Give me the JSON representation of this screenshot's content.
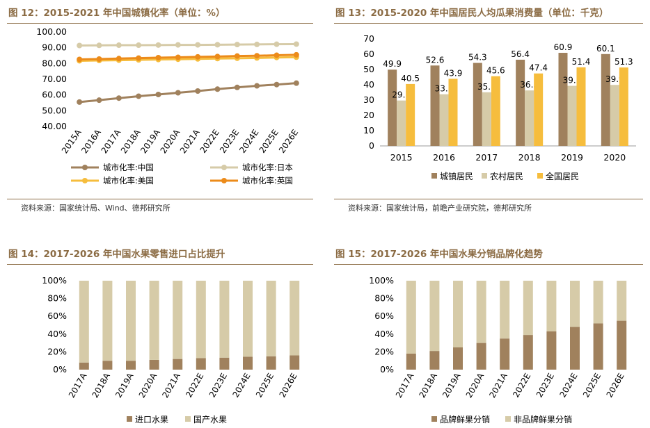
{
  "chart_data": [
    {
      "type": "line",
      "title": "图 12：2015-2021 年中国城镇化率（单位：%）",
      "source": "资料来源：国家统计局、Wind、德邦研究所",
      "categories": [
        "2015A",
        "2016A",
        "2017A",
        "2018A",
        "2019A",
        "2020A",
        "2021A",
        "2022E",
        "2023E",
        "2024E",
        "2025E",
        "2026E"
      ],
      "series": [
        {
          "name": "城市化率:中国",
          "color": "#a0815d",
          "values": [
            55.5,
            56.7,
            58.0,
            59.2,
            60.3,
            61.4,
            62.5,
            63.7,
            64.8,
            65.8,
            66.6,
            67.5
          ]
        },
        {
          "name": "城市化率:日本",
          "color": "#d6cba8",
          "values": [
            91.4,
            91.5,
            91.6,
            91.6,
            91.7,
            91.8,
            91.8,
            91.9,
            92.0,
            92.1,
            92.2,
            92.3
          ]
        },
        {
          "name": "城市化率:美国",
          "color": "#f6bd3d",
          "values": [
            81.7,
            81.9,
            82.1,
            82.3,
            82.5,
            82.7,
            82.9,
            83.1,
            83.3,
            83.5,
            83.8,
            84.0
          ]
        },
        {
          "name": "城市化率:英国",
          "color": "#ec8b1a",
          "values": [
            82.6,
            82.8,
            83.1,
            83.4,
            83.7,
            83.9,
            84.2,
            84.4,
            84.7,
            84.9,
            85.2,
            85.5
          ]
        }
      ],
      "yticks": [
        "40.00",
        "50.00",
        "60.00",
        "70.00",
        "80.00",
        "90.00",
        "100.00"
      ],
      "ylim": [
        40,
        100
      ]
    },
    {
      "type": "bar",
      "title": "图 13：2015-2020 年中国居民人均瓜果消费量（单位：千克）",
      "source": "资料来源：国家统计局，前瞻产业研究院，德邦研究所",
      "categories": [
        "2015",
        "2016",
        "2017",
        "2018",
        "2019",
        "2020"
      ],
      "series": [
        {
          "name": "城镇居民",
          "color": "#a0815d",
          "values": [
            49.9,
            52.6,
            54.3,
            56.4,
            60.9,
            60.1
          ]
        },
        {
          "name": "农村居民",
          "color": "#d6cba8",
          "values": [
            29.7,
            33.8,
            35.1,
            36.3,
            39.3,
            39.9
          ]
        },
        {
          "name": "全国居民",
          "color": "#f6bd3d",
          "values": [
            40.5,
            43.9,
            45.6,
            47.4,
            51.4,
            51.3
          ]
        }
      ],
      "yticks": [
        "0",
        "10",
        "20",
        "30",
        "40",
        "50",
        "60",
        "70"
      ],
      "ylim": [
        0,
        70
      ]
    },
    {
      "type": "bar",
      "stacked": true,
      "title": "图 14：2017-2026 年中国水果零售进口占比提升",
      "categories": [
        "2017A",
        "2018A",
        "2019A",
        "2020A",
        "2021A",
        "2022E",
        "2023E",
        "2024E",
        "2025E",
        "2026E"
      ],
      "series": [
        {
          "name": "进口水果",
          "color": "#a0815d",
          "values": [
            8,
            10,
            10,
            11,
            12,
            13,
            13.5,
            14.5,
            15,
            16
          ]
        },
        {
          "name": "国产水果",
          "color": "#d6cba8",
          "values": [
            92,
            90,
            90,
            89,
            88,
            87,
            86.5,
            85.5,
            85,
            84
          ]
        }
      ],
      "yticks": [
        "0%",
        "20%",
        "40%",
        "60%",
        "80%",
        "100%"
      ],
      "ylim": [
        0,
        100
      ]
    },
    {
      "type": "bar",
      "stacked": true,
      "title": "图 15：2017-2026 年中国水果分销品牌化趋势",
      "categories": [
        "2017A",
        "2018A",
        "2019A",
        "2020A",
        "2021A",
        "2022E",
        "2023E",
        "2024E",
        "2025E",
        "2026E"
      ],
      "series": [
        {
          "name": "品牌鲜果分销",
          "color": "#a0815d",
          "values": [
            18,
            21,
            25,
            30,
            35,
            39,
            43,
            48,
            52,
            55
          ]
        },
        {
          "name": "非品牌鲜果分销",
          "color": "#d6cba8",
          "values": [
            82,
            79,
            75,
            70,
            65,
            61,
            57,
            52,
            48,
            45
          ]
        }
      ],
      "yticks": [
        "0%",
        "20%",
        "40%",
        "60%",
        "80%",
        "100%"
      ],
      "ylim": [
        0,
        100
      ]
    }
  ]
}
